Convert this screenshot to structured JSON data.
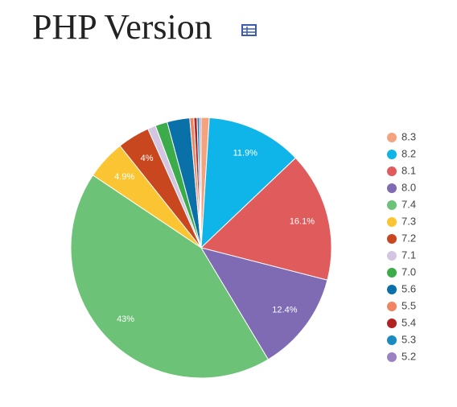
{
  "chart_data": {
    "type": "pie",
    "title": "PHP Version",
    "categories": [
      "8.3",
      "8.2",
      "8.1",
      "8.0",
      "7.4",
      "7.3",
      "7.2",
      "7.1",
      "7.0",
      "5.6",
      "5.5",
      "5.4",
      "5.3",
      "5.2"
    ],
    "values": [
      1,
      11.9,
      16.1,
      12.4,
      43,
      4.9,
      4,
      1,
      1.5,
      2.8,
      0.5,
      0.4,
      0.3,
      0.2
    ],
    "value_labels": [
      null,
      "11.9%",
      "16.1%",
      "12.4%",
      "43%",
      "4.9%",
      "4%",
      null,
      null,
      null,
      null,
      null,
      null,
      null
    ],
    "colors": [
      "#f5a37f",
      "#0fb5e8",
      "#e05c5c",
      "#7e6bb4",
      "#6cc276",
      "#fbc432",
      "#c8471f",
      "#d4c5e2",
      "#3cab4a",
      "#0a70a8",
      "#f08560",
      "#b22222",
      "#1a8ac2",
      "#9a82c2"
    ]
  }
}
